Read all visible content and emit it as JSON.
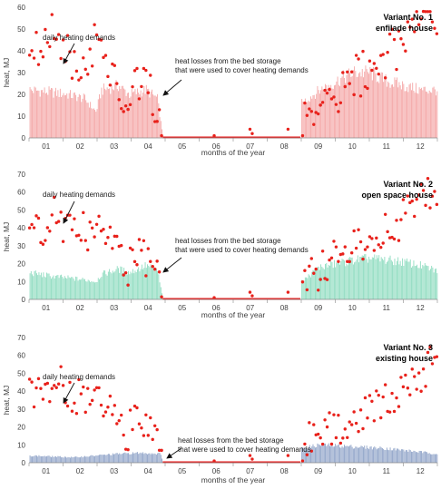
{
  "chart_data": [
    {
      "type": "bar+scatter",
      "title_line1": "Variant No. 1",
      "title_line2": "enfilade house",
      "xlabel": "months of the year",
      "ylabel": "heat, MJ",
      "ylim": [
        0,
        60
      ],
      "yticks": [
        0,
        10,
        20,
        30,
        40,
        50,
        60
      ],
      "months": [
        "01",
        "02",
        "03",
        "04",
        "05",
        "06",
        "07",
        "08",
        "09",
        "10",
        "11",
        "12"
      ],
      "annotation_demand": "daily heating demands",
      "annotation_losses_line1": "heat losses from the bed storage",
      "annotation_losses_line2": "that were used to cover heating demands",
      "bar_color": "#f4a6a6",
      "bar_anchors": [
        [
          1,
          22
        ],
        [
          20,
          21
        ],
        [
          35,
          20
        ],
        [
          50,
          18
        ],
        [
          60,
          12
        ],
        [
          65,
          22
        ],
        [
          80,
          24
        ],
        [
          90,
          20
        ],
        [
          105,
          22
        ],
        [
          115,
          18
        ],
        [
          120,
          0
        ],
        [
          243,
          0
        ],
        [
          244,
          16
        ],
        [
          260,
          22
        ],
        [
          275,
          26
        ],
        [
          290,
          30
        ],
        [
          305,
          30
        ],
        [
          320,
          26
        ],
        [
          335,
          24
        ],
        [
          350,
          22
        ],
        [
          365,
          22
        ]
      ],
      "demand_anchors": [
        [
          1,
          39
        ],
        [
          15,
          43
        ],
        [
          25,
          49
        ],
        [
          35,
          38
        ],
        [
          50,
          37
        ],
        [
          60,
          43
        ],
        [
          70,
          34
        ],
        [
          80,
          30
        ],
        [
          85,
          14
        ],
        [
          95,
          24
        ],
        [
          105,
          22
        ],
        [
          115,
          15
        ],
        [
          120,
          0
        ],
        [
          243,
          0
        ],
        [
          250,
          12
        ],
        [
          260,
          15
        ],
        [
          275,
          22
        ],
        [
          290,
          28
        ],
        [
          305,
          32
        ],
        [
          320,
          38
        ],
        [
          335,
          45
        ],
        [
          350,
          55
        ],
        [
          365,
          52
        ]
      ]
    },
    {
      "type": "bar+scatter",
      "title_line1": "Variant No. 2",
      "title_line2": "open space house",
      "xlabel": "months of the year",
      "ylabel": "heat, MJ",
      "ylim": [
        0,
        70
      ],
      "yticks": [
        0,
        10,
        20,
        30,
        40,
        50,
        60,
        70
      ],
      "months": [
        "01",
        "02",
        "03",
        "04",
        "05",
        "06",
        "07",
        "08",
        "09",
        "10",
        "11",
        "12"
      ],
      "annotation_demand": "daily heating demands",
      "annotation_losses_line1": "heat losses from the bed storage",
      "annotation_losses_line2": "that were used to cover heating demands",
      "bar_color": "#8fdcc0",
      "bar_anchors": [
        [
          1,
          15
        ],
        [
          20,
          13
        ],
        [
          35,
          12
        ],
        [
          50,
          11
        ],
        [
          60,
          10
        ],
        [
          65,
          14
        ],
        [
          80,
          17
        ],
        [
          90,
          15
        ],
        [
          105,
          19
        ],
        [
          115,
          16
        ],
        [
          120,
          0
        ],
        [
          243,
          0
        ],
        [
          244,
          10
        ],
        [
          260,
          18
        ],
        [
          275,
          20
        ],
        [
          290,
          22
        ],
        [
          305,
          23
        ],
        [
          320,
          22
        ],
        [
          335,
          21
        ],
        [
          350,
          19
        ],
        [
          365,
          16
        ]
      ],
      "demand_anchors": [
        [
          1,
          38
        ],
        [
          15,
          42
        ],
        [
          25,
          50
        ],
        [
          35,
          38
        ],
        [
          50,
          38
        ],
        [
          60,
          40
        ],
        [
          70,
          32
        ],
        [
          80,
          28
        ],
        [
          85,
          14
        ],
        [
          95,
          24
        ],
        [
          105,
          22
        ],
        [
          115,
          12
        ],
        [
          120,
          0
        ],
        [
          243,
          0
        ],
        [
          250,
          12
        ],
        [
          260,
          15
        ],
        [
          275,
          24
        ],
        [
          290,
          30
        ],
        [
          305,
          34
        ],
        [
          320,
          38
        ],
        [
          335,
          46
        ],
        [
          350,
          55
        ],
        [
          365,
          62
        ]
      ]
    },
    {
      "type": "bar+scatter",
      "title_line1": "Variant No. 3",
      "title_line2": "existing house",
      "xlabel": "months of the year",
      "ylabel": "heat, MJ",
      "ylim": [
        0,
        70
      ],
      "yticks": [
        0,
        10,
        20,
        30,
        40,
        50,
        60,
        70
      ],
      "months": [
        "01",
        "02",
        "03",
        "04",
        "05",
        "06",
        "07",
        "08",
        "09",
        "10",
        "11",
        "12"
      ],
      "annotation_demand": "daily heating demands",
      "annotation_losses_line1": "heat losses from the bed storage",
      "annotation_losses_line2": "that were used to cover heating demands",
      "bar_color": "#8fa3c8",
      "bar_anchors": [
        [
          1,
          4
        ],
        [
          20,
          3.5
        ],
        [
          40,
          3
        ],
        [
          60,
          4
        ],
        [
          80,
          5
        ],
        [
          100,
          5.5
        ],
        [
          118,
          5
        ],
        [
          120,
          0
        ],
        [
          243,
          0
        ],
        [
          244,
          8
        ],
        [
          260,
          10
        ],
        [
          290,
          9
        ],
        [
          320,
          8
        ],
        [
          350,
          6
        ],
        [
          365,
          5
        ]
      ],
      "demand_anchors": [
        [
          1,
          40
        ],
        [
          15,
          42
        ],
        [
          25,
          46
        ],
        [
          35,
          38
        ],
        [
          50,
          35
        ],
        [
          60,
          38
        ],
        [
          70,
          30
        ],
        [
          80,
          25
        ],
        [
          85,
          13
        ],
        [
          95,
          22
        ],
        [
          105,
          18
        ],
        [
          115,
          10
        ],
        [
          120,
          0
        ],
        [
          243,
          0
        ],
        [
          250,
          12
        ],
        [
          260,
          13
        ],
        [
          275,
          20
        ],
        [
          290,
          26
        ],
        [
          305,
          30
        ],
        [
          320,
          35
        ],
        [
          335,
          40
        ],
        [
          350,
          50
        ],
        [
          365,
          60
        ]
      ]
    }
  ]
}
